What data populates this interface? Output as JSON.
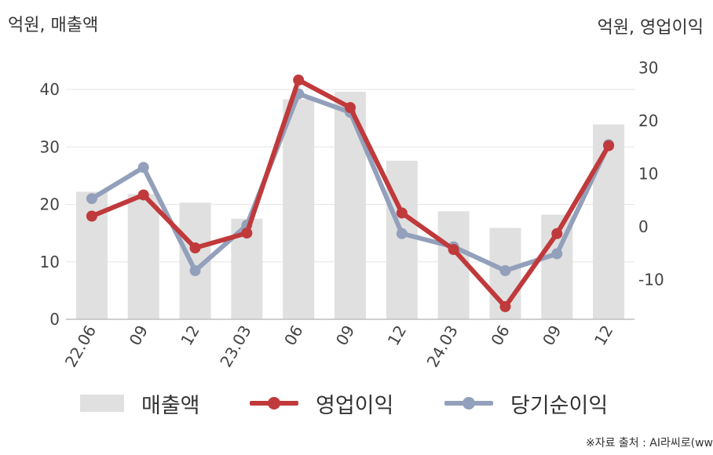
{
  "units": {
    "left": "억원, 매출액",
    "right": "억원, 영업이익"
  },
  "legend": {
    "revenue": "매출액",
    "operating": "영업이익",
    "net": "당기순이익"
  },
  "source": "※자료 출처 : AI라씨로(ww",
  "colors": {
    "bar": "#e0e0e0",
    "operating": "#c0393b",
    "net": "#93a0bb",
    "grid": "#e6e6e6",
    "axis": "#bfbfbf"
  },
  "chart_data": {
    "type": "bar+line",
    "categories": [
      "22.06",
      "09",
      "12",
      "23.03",
      "06",
      "09",
      "12",
      "24.03",
      "06",
      "09",
      "12"
    ],
    "left_axis": {
      "ticks": [
        0,
        10,
        20,
        30,
        40
      ],
      "ylim": [
        0,
        44
      ]
    },
    "right_axis": {
      "ticks": [
        -10,
        0,
        10,
        20,
        30
      ],
      "ylim": [
        -17,
        33
      ]
    },
    "series": [
      {
        "name": "매출액",
        "type": "bar",
        "axis": "left",
        "values": [
          22.2,
          21.8,
          20.3,
          17.5,
          38.3,
          39.6,
          27.6,
          18.8,
          15.9,
          18.2,
          33.9
        ]
      },
      {
        "name": "영업이익",
        "type": "line",
        "axis": "right",
        "values": [
          2.0,
          6.0,
          -4.0,
          -1.2,
          27.7,
          22.5,
          2.6,
          -4.3,
          -15.1,
          -1.3,
          15.3
        ]
      },
      {
        "name": "당기순이익",
        "type": "line",
        "axis": "right",
        "values": [
          5.3,
          11.2,
          -8.3,
          0.3,
          25.1,
          21.6,
          -1.3,
          -3.8,
          -8.3,
          -5.1,
          15.5
        ]
      }
    ]
  }
}
